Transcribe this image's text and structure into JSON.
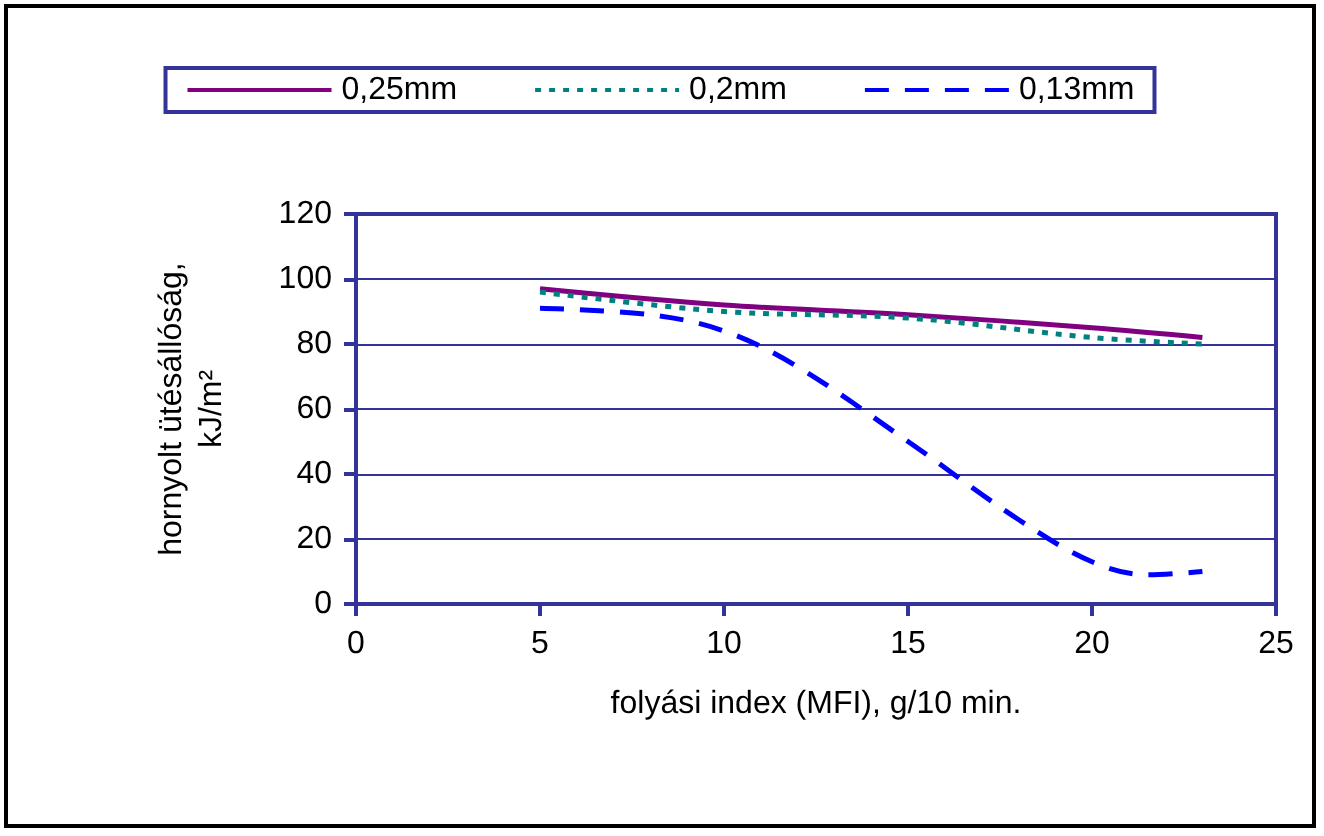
{
  "chart_data": {
    "type": "line",
    "xlabel": "folyási index (MFI), g/10 min.",
    "ylabel": "hornyolt ütésállóság,\nkJ/m²",
    "xlim": [
      0,
      25
    ],
    "xticks": [
      0,
      5,
      10,
      15,
      20,
      25
    ],
    "ylim": [
      0,
      120
    ],
    "yticks": [
      0,
      20,
      40,
      60,
      80,
      100,
      120
    ],
    "grid": "y",
    "legend": "top",
    "marker": "none",
    "series": [
      {
        "name": "0,25mm",
        "color": "#800080",
        "line_style": "solid",
        "x": [
          5,
          10,
          15,
          20,
          23
        ],
        "values": [
          97,
          92,
          89,
          85,
          82
        ]
      },
      {
        "name": "0,2mm",
        "color": "#008080",
        "line_style": "dotted",
        "x": [
          5,
          10,
          15,
          20,
          23
        ],
        "values": [
          96,
          90,
          88,
          82,
          80
        ]
      },
      {
        "name": "0,13mm",
        "color": "#0000ff",
        "line_style": "dashed",
        "x": [
          5,
          8,
          10,
          12,
          15,
          18,
          20,
          21.5,
          23
        ],
        "values": [
          91,
          89,
          84,
          73,
          50,
          26,
          13,
          9,
          10
        ]
      }
    ]
  }
}
